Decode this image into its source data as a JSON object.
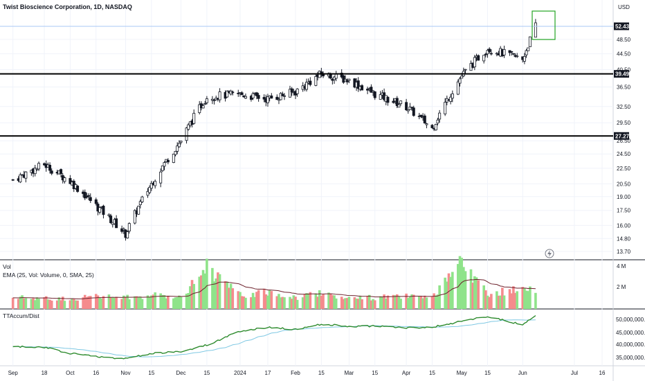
{
  "header": {
    "title": "Twist Bioscience Corporation, 1D, NASDAQ",
    "currency": "USD"
  },
  "price_axis": {
    "ticks": [
      "13.70",
      "14.80",
      "16.00",
      "17.50",
      "19.00",
      "20.50",
      "22.50",
      "24.50",
      "26.50",
      "29.50",
      "32.50",
      "36.50",
      "40.50",
      "44.50",
      "48.50"
    ],
    "last_price_label": "52.43",
    "support_label": "27.27",
    "resistance_label": "39.49"
  },
  "volume_pane": {
    "title": "Vol",
    "subtitle": "EMA (25, Vol: Volume, 0, SMA, 25)",
    "ticks": [
      "4 M",
      "2 M"
    ]
  },
  "accum_pane": {
    "title": "TTAccum/Dist",
    "ticks": [
      "50,000,000.00",
      "45,000,000.00",
      "40,000,000.00",
      "35,000,000.00"
    ]
  },
  "time_axis": {
    "ticks": [
      "Sep",
      "18",
      "Oct",
      "16",
      "Nov",
      "15",
      "Dec",
      "15",
      "2024",
      "17",
      "Feb",
      "15",
      "Mar",
      "15",
      "Apr",
      "15",
      "May",
      "15",
      "Jun",
      "Jul",
      "16"
    ]
  },
  "colors": {
    "up": "#089981",
    "down": "#f23645",
    "vol_up": "#8fe38a",
    "vol_down": "#f58b8d",
    "accum_line": "#2e8b2e",
    "accum_ma": "#7ec8e3",
    "box": "#22a322"
  },
  "chart_data": [
    {
      "type": "candlestick",
      "title": "Twist Bioscience Corporation, 1D, NASDAQ",
      "scale": "log",
      "ylim": [
        13.2,
        56
      ],
      "horizontal_levels": [
        27.27,
        39.49
      ],
      "last_price": 52.43,
      "x": [
        "2023-09-01",
        "2023-09-18",
        "2023-10-02",
        "2023-10-16",
        "2023-11-01",
        "2023-11-15",
        "2023-12-01",
        "2023-12-15",
        "2024-01-02",
        "2024-01-17",
        "2024-02-01",
        "2024-02-15",
        "2024-03-01",
        "2024-03-15",
        "2024-04-01",
        "2024-04-15",
        "2024-05-01",
        "2024-05-15",
        "2024-06-03",
        "2024-06-10"
      ],
      "close": [
        21.0,
        23.0,
        20.8,
        18.0,
        15.2,
        20.5,
        26.5,
        34.5,
        35.0,
        34.0,
        35.5,
        39.5,
        38.0,
        35.0,
        32.5,
        28.5,
        39.0,
        46.0,
        43.0,
        52.4
      ]
    },
    {
      "type": "bar",
      "title": "Vol",
      "ylim": [
        0,
        4.5
      ],
      "unit": "M",
      "values": [
        1.1,
        1.0,
        1.0,
        1.2,
        1.1,
        1.3,
        1.2,
        4.1,
        1.3,
        1.6,
        1.1,
        1.6,
        1.0,
        1.1,
        1.2,
        1.0,
        4.3,
        1.5,
        1.9,
        1.6
      ]
    },
    {
      "type": "line",
      "title": "TTAccum/Dist",
      "ylim": [
        32000000,
        53000000
      ],
      "series": [
        {
          "values": [
            38300000,
            38000000,
            35500000,
            34200000,
            33200000,
            35500000,
            36200000,
            39000000,
            44800000,
            46500000,
            45500000,
            47800000,
            46800000,
            47000000,
            46200000,
            46500000,
            49000000,
            51000000,
            47500000,
            51500000
          ]
        }
      ]
    }
  ]
}
